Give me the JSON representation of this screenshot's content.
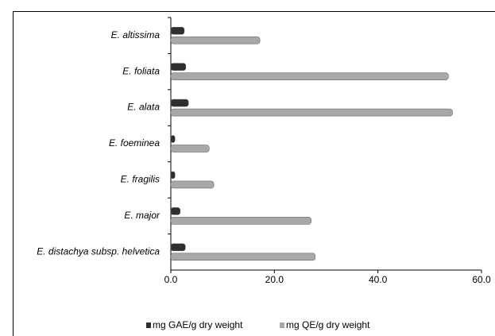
{
  "chart_data": {
    "type": "hbar",
    "categories": [
      "E. altissima",
      "E. foliata",
      "E. alata",
      "E. foeminea",
      "E. fragilis",
      "E. major",
      "E. distachya subsp. helvetica"
    ],
    "series": [
      {
        "name": "mg GAE/g dry weight",
        "color": "#2e2e2e",
        "values": [
          2.6,
          2.9,
          3.4,
          0.8,
          0.8,
          1.8,
          2.8
        ]
      },
      {
        "name": "mg QE/g dry weight",
        "color": "#a8a8a8",
        "values": [
          17.2,
          53.6,
          54.4,
          7.4,
          8.3,
          27.1,
          27.9
        ]
      }
    ],
    "xlim": [
      0,
      60
    ],
    "xticks": [
      {
        "value": 0,
        "label": "0.0"
      },
      {
        "value": 20,
        "label": "20.0"
      },
      {
        "value": 40,
        "label": "40.0"
      },
      {
        "value": 60,
        "label": "60.0"
      }
    ],
    "legend": "bottom"
  }
}
